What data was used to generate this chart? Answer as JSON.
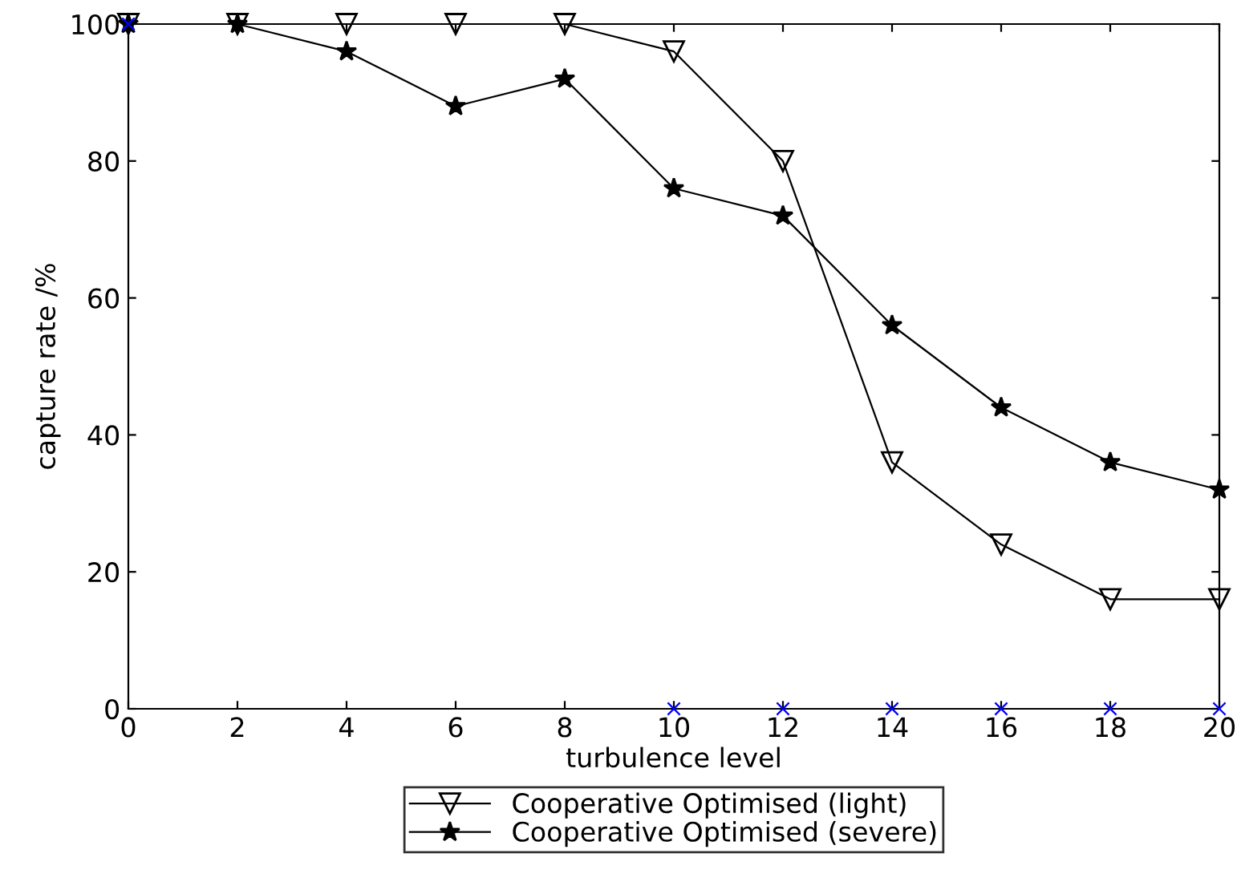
{
  "chart_data": {
    "type": "line",
    "xlabel": "turbulence level",
    "ylabel": "capture rate /%",
    "x": [
      0,
      2,
      4,
      6,
      8,
      10,
      12,
      14,
      16,
      18,
      20
    ],
    "series": [
      {
        "name": "Cooperative Optimised (light)",
        "color": "#000000",
        "marker": "triangle",
        "values": [
          100,
          100,
          100,
          100,
          100,
          96,
          80,
          36,
          24,
          16,
          16
        ]
      },
      {
        "name": "Cooperative Optimised (severe)",
        "color": "#000000",
        "marker": "star",
        "values": [
          100,
          100,
          96,
          88,
          92,
          76,
          72,
          56,
          44,
          36,
          32
        ]
      },
      {
        "type": "scatter",
        "color": "#0000ff",
        "marker": "cross",
        "x": [
          0,
          10,
          12,
          14,
          16,
          18,
          20
        ],
        "values": [
          100,
          0,
          0,
          0,
          0,
          0,
          0
        ]
      }
    ],
    "xlim": [
      0,
      20
    ],
    "xticks": [
      0,
      2,
      4,
      6,
      8,
      10,
      12,
      14,
      16,
      18,
      20
    ],
    "ylim": [
      0,
      100
    ],
    "yticks": [
      0,
      20,
      40,
      60,
      80,
      100
    ],
    "grid": false,
    "legend": "bottom",
    "line_style": "solid"
  }
}
